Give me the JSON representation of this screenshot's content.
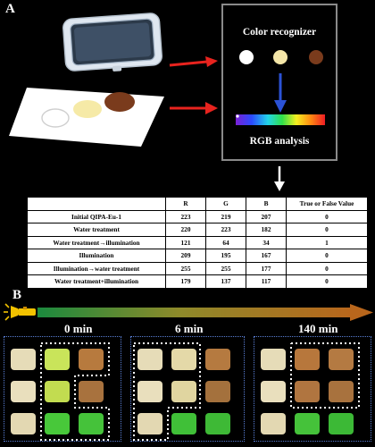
{
  "panel_a": {
    "label": "A"
  },
  "panel_b": {
    "label": "B"
  },
  "recognizer": {
    "title": "Color recognizer",
    "subtitle": "RGB analysis",
    "dot_colors": [
      "#ffffff",
      "#f4e6a8",
      "#7a3b1c"
    ]
  },
  "table": {
    "headers": [
      "",
      "R",
      "G",
      "B",
      "True or False Value"
    ],
    "rows": [
      [
        "Initial QIPA-Eu-1",
        "223",
        "219",
        "207",
        "0"
      ],
      [
        "Water treatment",
        "220",
        "223",
        "182",
        "0"
      ],
      [
        "Water treatment→illumination",
        "121",
        "64",
        "34",
        "1"
      ],
      [
        "Illumination",
        "209",
        "195",
        "167",
        "0"
      ],
      [
        "Illumination→water treatment",
        "255",
        "255",
        "177",
        "0"
      ],
      [
        "Water treatment+illumination",
        "179",
        "137",
        "117",
        "0"
      ]
    ]
  },
  "timeline": {
    "labels": [
      "0 min",
      "6 min",
      "140 min"
    ]
  },
  "colors": {
    "arrow_red": "#e8231e",
    "arrow_blue": "#2b52d6",
    "box_border": "#8a8a8a",
    "group_border": "#5a7fd6"
  },
  "icons": [
    "tray-icon",
    "paper-with-spots-icon",
    "flashlight-icon"
  ]
}
